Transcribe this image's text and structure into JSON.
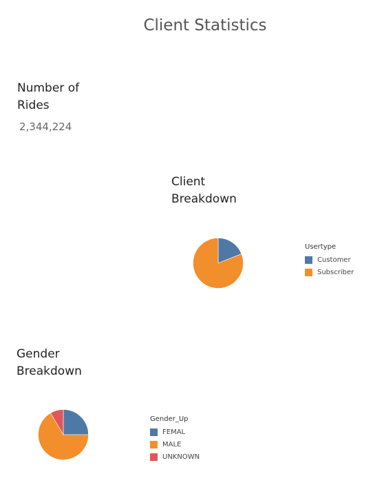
{
  "page_title": "Client Statistics",
  "kpi": {
    "title": "Number of Rides",
    "value": "2,344,224"
  },
  "colors": {
    "blue": "#4e79a7",
    "orange": "#f28e2b",
    "red": "#e15759"
  },
  "chart_data": [
    {
      "id": "client",
      "type": "pie",
      "title": "Client Breakdown",
      "legend_title": "Usertype",
      "legend_position": "right",
      "slices": [
        {
          "label": "Customer",
          "value": 0.19,
          "color": "#4e79a7"
        },
        {
          "label": "Subscriber",
          "value": 0.81,
          "color": "#f28e2b"
        }
      ]
    },
    {
      "id": "gender",
      "type": "pie",
      "title": "Gender Breakdown",
      "legend_title": "Gender_Up",
      "legend_position": "right",
      "slices": [
        {
          "label": "FEMAL",
          "value": 0.25,
          "color": "#4e79a7"
        },
        {
          "label": "MALE",
          "value": 0.665,
          "color": "#f28e2b"
        },
        {
          "label": "UNKNOWN",
          "value": 0.085,
          "color": "#e15759"
        }
      ]
    }
  ]
}
